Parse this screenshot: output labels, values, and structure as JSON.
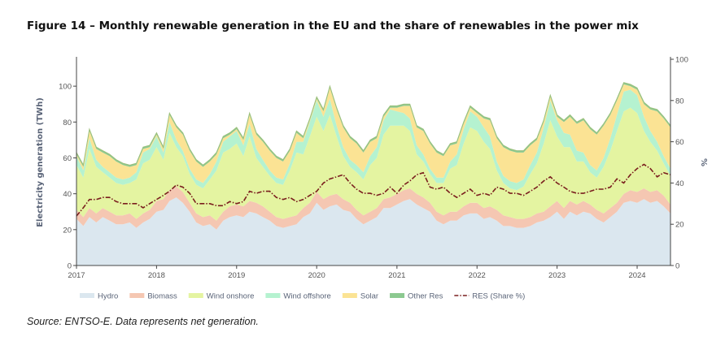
{
  "figure": {
    "title": "Figure 14 – Monthly renewable generation in the EU and the share of renewables in the power mix",
    "source": "Source: ENTSO-E. Data represents net generation."
  },
  "chart_data": {
    "type": "area",
    "stacked": true,
    "x_start": "2017-01",
    "x_end": "2024-06",
    "x_ticks": [
      "2017",
      "2018",
      "2019",
      "2020",
      "2021",
      "2022",
      "2023",
      "2024"
    ],
    "ylabel": "Electricity generation (TWh)",
    "ylim": [
      0,
      115
    ],
    "y_ticks": [
      0,
      20,
      40,
      60,
      80,
      100
    ],
    "y2label": "%",
    "y2lim": [
      0,
      100
    ],
    "y2_ticks": [
      0,
      20,
      40,
      60,
      80,
      100
    ],
    "grid": false,
    "legend_position": "bottom",
    "series": [
      {
        "name": "Hydro",
        "color": "#dbe7ef",
        "values": [
          26,
          22,
          27,
          24,
          27,
          25,
          23,
          23,
          24,
          21,
          24,
          26,
          30,
          31,
          36,
          38,
          35,
          30,
          24,
          22,
          23,
          20,
          25,
          27,
          28,
          27,
          30,
          29,
          27,
          25,
          22,
          21,
          22,
          23,
          27,
          29,
          35,
          31,
          33,
          34,
          31,
          30,
          26,
          23,
          25,
          27,
          32,
          32,
          34,
          36,
          37,
          34,
          32,
          30,
          25,
          23,
          25,
          25,
          28,
          29,
          29,
          26,
          27,
          25,
          22,
          22,
          21,
          21,
          22,
          24,
          25,
          27,
          30,
          26,
          30,
          28,
          30,
          29,
          26,
          24,
          27,
          30,
          35,
          36,
          35,
          37,
          35,
          36,
          33,
          29
        ]
      },
      {
        "name": "Biomass",
        "color": "#f5c7b2",
        "values": [
          5,
          5,
          5,
          5,
          5,
          5,
          5,
          5,
          5,
          5,
          5,
          5,
          6,
          6,
          6,
          6,
          6,
          5,
          5,
          5,
          5,
          5,
          5,
          6,
          6,
          6,
          6,
          6,
          6,
          5,
          5,
          5,
          5,
          5,
          5,
          6,
          6,
          6,
          6,
          6,
          6,
          5,
          5,
          5,
          5,
          5,
          5,
          6,
          6,
          6,
          6,
          6,
          6,
          5,
          5,
          5,
          5,
          5,
          5,
          6,
          6,
          6,
          6,
          6,
          6,
          5,
          5,
          5,
          5,
          5,
          5,
          6,
          6,
          6,
          6,
          6,
          6,
          5,
          5,
          5,
          5,
          5,
          5,
          6,
          6,
          6,
          6,
          6,
          6,
          5
        ]
      },
      {
        "name": "Wind onshore",
        "color": "#e4f4a1",
        "values": [
          25,
          22,
          33,
          26,
          20,
          19,
          18,
          17,
          17,
          22,
          28,
          28,
          30,
          22,
          32,
          22,
          20,
          16,
          16,
          16,
          20,
          28,
          33,
          32,
          34,
          28,
          36,
          25,
          22,
          20,
          19,
          19,
          26,
          35,
          30,
          37,
          42,
          38,
          45,
          32,
          24,
          20,
          21,
          20,
          26,
          28,
          36,
          40,
          38,
          36,
          32,
          22,
          20,
          16,
          16,
          18,
          24,
          26,
          35,
          42,
          40,
          37,
          32,
          22,
          18,
          16,
          16,
          18,
          24,
          28,
          38,
          48,
          36,
          34,
          30,
          24,
          22,
          18,
          18,
          26,
          32,
          40,
          46,
          46,
          44,
          32,
          28,
          22,
          18,
          16
        ]
      },
      {
        "name": "Wind offshore",
        "color": "#b5f2d0",
        "values": [
          5,
          4,
          6,
          4,
          3,
          3,
          3,
          3,
          3,
          4,
          6,
          6,
          6,
          4,
          6,
          4,
          3,
          3,
          3,
          3,
          3,
          5,
          6,
          7,
          7,
          6,
          7,
          5,
          4,
          3,
          3,
          3,
          4,
          6,
          7,
          8,
          9,
          8,
          9,
          6,
          5,
          4,
          4,
          4,
          5,
          6,
          8,
          9,
          8,
          7,
          7,
          5,
          4,
          3,
          3,
          3,
          4,
          6,
          8,
          9,
          8,
          8,
          7,
          5,
          4,
          4,
          4,
          4,
          5,
          6,
          9,
          11,
          9,
          8,
          7,
          6,
          5,
          4,
          4,
          5,
          7,
          9,
          11,
          10,
          10,
          8,
          6,
          5,
          4,
          4
        ]
      },
      {
        "name": "Solar",
        "color": "#fbe394",
        "values": [
          1,
          2,
          4,
          6,
          8,
          9,
          9,
          8,
          6,
          4,
          2,
          1,
          1,
          2,
          4,
          7,
          9,
          10,
          10,
          9,
          7,
          4,
          2,
          1,
          1,
          3,
          5,
          8,
          10,
          11,
          11,
          10,
          7,
          5,
          2,
          1,
          1,
          3,
          6,
          9,
          11,
          12,
          12,
          11,
          8,
          5,
          2,
          1,
          2,
          4,
          7,
          10,
          13,
          14,
          14,
          12,
          9,
          6,
          3,
          2,
          2,
          5,
          9,
          13,
          16,
          17,
          17,
          15,
          11,
          7,
          3,
          2,
          2,
          6,
          10,
          15,
          18,
          20,
          20,
          18,
          13,
          8,
          4,
          2,
          3,
          7,
          12,
          17,
          21,
          23
        ]
      },
      {
        "name": "Other Res",
        "color": "#8cc990",
        "values": [
          1,
          1,
          1,
          1,
          1,
          1,
          1,
          1,
          1,
          1,
          1,
          1,
          1,
          1,
          1,
          1,
          1,
          1,
          1,
          1,
          1,
          1,
          1,
          1,
          1,
          1,
          1,
          1,
          1,
          1,
          1,
          1,
          1,
          1,
          1,
          1,
          1,
          1,
          1,
          1,
          1,
          1,
          1,
          1,
          1,
          1,
          1,
          1,
          1,
          1,
          1,
          1,
          1,
          1,
          1,
          1,
          1,
          1,
          1,
          1,
          1,
          1,
          1,
          1,
          1,
          1,
          1,
          1,
          1,
          1,
          1,
          1,
          1,
          1,
          1,
          1,
          1,
          1,
          1,
          1,
          1,
          1,
          1,
          1,
          1,
          1,
          1,
          1,
          1,
          1
        ]
      },
      {
        "name": "RES (Share %)",
        "axis": "right",
        "line": "dashdot",
        "color": "#7a1e1e",
        "values": [
          24,
          28,
          32,
          32,
          33,
          33,
          31,
          30,
          30,
          30,
          28,
          30,
          32,
          34,
          36,
          39,
          38,
          35,
          30,
          30,
          30,
          29,
          29,
          31,
          30,
          31,
          36,
          35,
          36,
          36,
          33,
          32,
          33,
          31,
          32,
          34,
          36,
          40,
          42,
          43,
          44,
          40,
          37,
          35,
          35,
          34,
          35,
          38,
          35,
          39,
          41,
          44,
          45,
          38,
          37,
          38,
          35,
          33,
          35,
          37,
          34,
          35,
          34,
          38,
          37,
          35,
          35,
          34,
          36,
          38,
          41,
          43,
          40,
          38,
          36,
          35,
          35,
          36,
          37,
          37,
          38,
          42,
          40,
          44,
          47,
          49,
          47,
          43,
          45,
          44
        ]
      }
    ]
  }
}
